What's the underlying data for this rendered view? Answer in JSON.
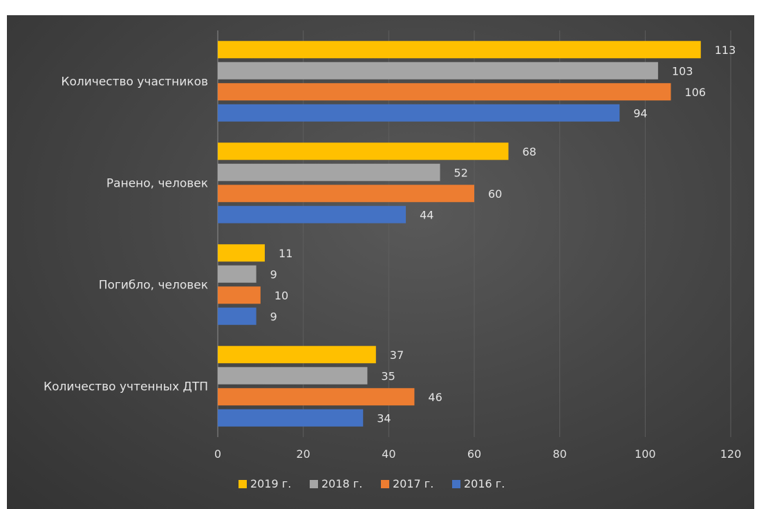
{
  "chart_data": {
    "type": "bar",
    "orientation": "horizontal",
    "categories": [
      "Количество участников",
      "Ранено, человек",
      "Погибло, человек",
      "Количество учтенных ДТП"
    ],
    "series": [
      {
        "name": "2019 г.",
        "color": "#ffc000",
        "values": [
          113,
          68,
          11,
          37
        ]
      },
      {
        "name": "2018 г.",
        "color": "#a5a5a5",
        "values": [
          103,
          52,
          9,
          35
        ]
      },
      {
        "name": "2017 г.",
        "color": "#ed7d31",
        "values": [
          106,
          60,
          10,
          46
        ]
      },
      {
        "name": "2016 г.",
        "color": "#4472c4",
        "values": [
          94,
          44,
          9,
          34
        ]
      }
    ],
    "xlim": [
      0,
      120
    ],
    "xticks": [
      0,
      20,
      40,
      60,
      80,
      100,
      120
    ],
    "grid": true,
    "legend_position": "bottom"
  }
}
